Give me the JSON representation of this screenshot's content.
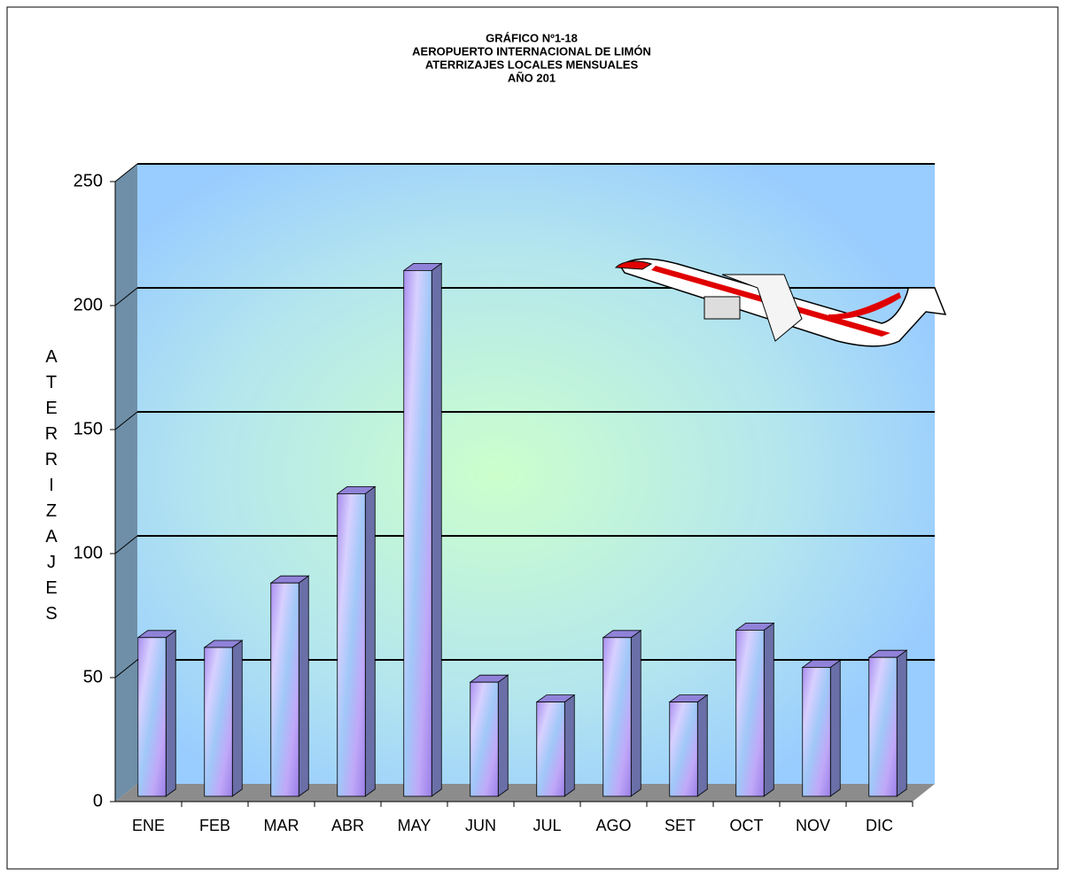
{
  "chart_data": {
    "type": "bar3d",
    "title": [
      "GRÁFICO Nº1-18",
      "AEROPUERTO INTERNACIONAL DE LIMÓN",
      "ATERRIZAJES LOCALES MENSUALES",
      "AÑO 201"
    ],
    "y_label": "ATERRIZAJES",
    "categories": [
      "ENE",
      "FEB",
      "MAR",
      "ABR",
      "MAY",
      "JUN",
      "JUL",
      "AGO",
      "SET",
      "OCT",
      "NOV",
      "DIC"
    ],
    "values": [
      64,
      60,
      86,
      122,
      212,
      46,
      38,
      64,
      38,
      67,
      52,
      56
    ],
    "color": "#b9a8f0",
    "ylim": [
      0,
      250
    ],
    "yticks": [
      0,
      50,
      100,
      150,
      200,
      250
    ],
    "grid": true
  }
}
